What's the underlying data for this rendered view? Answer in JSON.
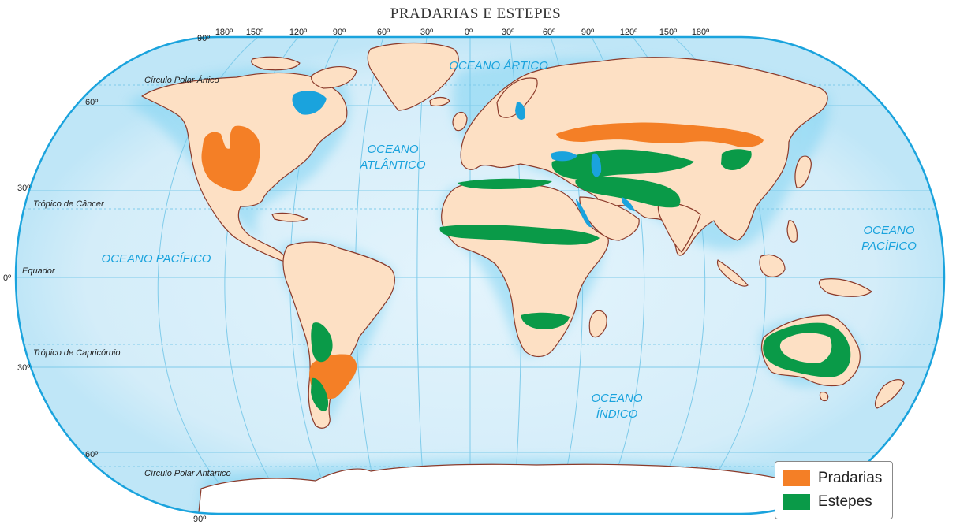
{
  "title": "PRADARIAS E ESTEPES",
  "colors": {
    "ocean": "#d9eef9",
    "ocean_edge": "#7fd0f0",
    "land": "#fde0c4",
    "coast": "#8b3a2a",
    "ice": "#ffffff",
    "pradarias": "#f47f26",
    "estepes": "#0a9a48",
    "grid": "#7fcbea",
    "label_blue": "#1aa3dd"
  },
  "top_longitudes": [
    "180º",
    "150º",
    "120º",
    "90º",
    "60º",
    "30º",
    "0º",
    "30º",
    "60º",
    "90º",
    "120º",
    "150º",
    "180º"
  ],
  "latitude_labels": {
    "north_pole": "90º",
    "south_pole": "90º",
    "lat60n": "60º",
    "lat30n": "30º",
    "equator": "0º",
    "lat30s": "30º",
    "lat60s": "60º"
  },
  "lines": {
    "arctic_circle": "Círculo Polar Ártico",
    "tropic_cancer": "Trópico de Câncer",
    "equator": "Equador",
    "tropic_capricorn": "Trópico de Capricórnio",
    "antarctic_circle": "Círculo Polar Antártico"
  },
  "oceans": {
    "arctic": "OCEANO ÁRTICO",
    "atlantic_1": "OCEANO",
    "atlantic_2": "ATLÂNTICO",
    "pacific_west": "OCEANO PACÍFICO",
    "pacific_east_1": "OCEANO",
    "pacific_east_2": "PACÍFICO",
    "indian_1": "OCEANO",
    "indian_2": "ÍNDICO"
  },
  "legend": {
    "items": [
      {
        "label": "Pradarias",
        "color": "#f47f26"
      },
      {
        "label": "Estepes",
        "color": "#0a9a48"
      }
    ]
  }
}
